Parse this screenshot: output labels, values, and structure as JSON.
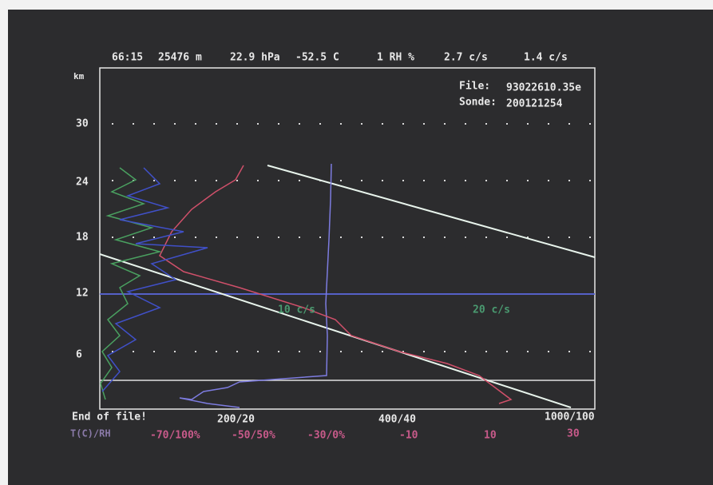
{
  "header": {
    "fields": [
      "66:15",
      "25476 m",
      "22.9 hPa",
      "-52.5 C",
      "1 RH %",
      "2.7 c/s",
      "1.4 c/s"
    ]
  },
  "file": {
    "label": "File:",
    "value": "93022610.35e"
  },
  "sonde": {
    "label": "Sonde:",
    "value": "200121254"
  },
  "y_axis": {
    "unit": "km",
    "ticks": [
      "30",
      "24",
      "18",
      "12",
      "6"
    ]
  },
  "status": "End of file!",
  "x_axis_top": [
    "200/20",
    "400/40",
    "1000/100"
  ],
  "x_axis_bottom": {
    "label": "T(C)/RH",
    "ticks": [
      "-70/100%",
      "-50/50%",
      "-30/0%",
      "-10",
      "10",
      "30"
    ]
  },
  "annotations": [
    "10 c/s",
    "20 c/s"
  ]
}
